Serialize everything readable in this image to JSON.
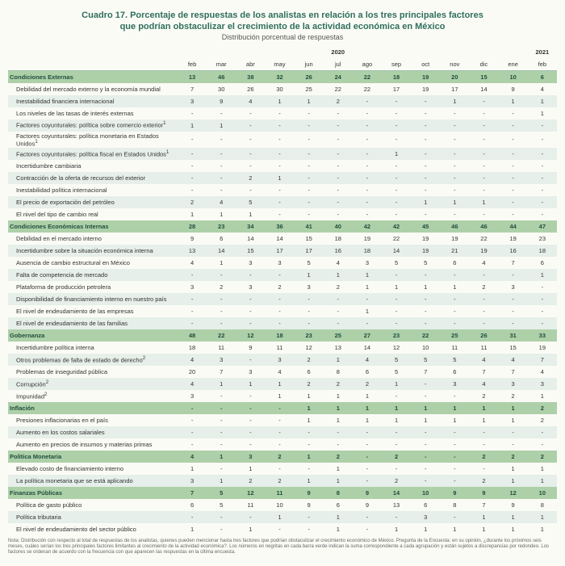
{
  "title_line1": "Cuadro 17. Porcentaje de respuestas de los analistas en relación a los tres principales factores",
  "title_line2": "que podrían obstaculizar el crecimiento de la actividad económica en México",
  "subtitle": "Distribución porcentual de respuestas",
  "years": {
    "y2020": "2020",
    "y2021": "2021"
  },
  "months": [
    "feb",
    "mar",
    "abr",
    "may",
    "jun",
    "jul",
    "ago",
    "sep",
    "oct",
    "nov",
    "dic",
    "ene",
    "feb"
  ],
  "groups": [
    {
      "label": "Condiciones Externas",
      "totals": [
        "13",
        "46",
        "38",
        "32",
        "26",
        "24",
        "22",
        "18",
        "19",
        "20",
        "15",
        "10",
        "6"
      ],
      "rows": [
        {
          "label": "Debilidad del mercado externo y la economía mundial",
          "v": [
            "7",
            "30",
            "26",
            "30",
            "25",
            "22",
            "22",
            "17",
            "19",
            "17",
            "14",
            "9",
            "4"
          ]
        },
        {
          "label": "Inestabilidad financiera internacional",
          "v": [
            "3",
            "9",
            "4",
            "1",
            "1",
            "2",
            "-",
            "-",
            "-",
            "1",
            "-",
            "1",
            "1"
          ]
        },
        {
          "label": "Los niveles de las tasas de interés externas",
          "v": [
            "-",
            "-",
            "-",
            "-",
            "-",
            "-",
            "-",
            "-",
            "-",
            "-",
            "-",
            "-",
            "1"
          ]
        },
        {
          "label": "Factores coyunturales: política sobre comercio exterior",
          "sup": "1",
          "v": [
            "1",
            "1",
            "-",
            "-",
            "-",
            "-",
            "-",
            "-",
            "-",
            "-",
            "-",
            "-",
            "-"
          ]
        },
        {
          "label": "Factores coyunturales: política monetaria en Estados Unidos",
          "sup": "1",
          "v": [
            "-",
            "-",
            "-",
            "-",
            "-",
            "-",
            "-",
            "-",
            "-",
            "-",
            "-",
            "-",
            "-"
          ]
        },
        {
          "label": "Factores coyunturales: política fiscal en Estados Unidos",
          "sup": "1",
          "v": [
            "-",
            "-",
            "-",
            "-",
            "-",
            "-",
            "-",
            "1",
            "-",
            "-",
            "-",
            "-",
            "-"
          ]
        },
        {
          "label": "Incertidumbre cambiaria",
          "v": [
            "-",
            "-",
            "-",
            "-",
            "-",
            "-",
            "-",
            "-",
            "-",
            "-",
            "-",
            "-",
            "-"
          ]
        },
        {
          "label": "Contracción de la oferta de recursos del exterior",
          "v": [
            "-",
            "-",
            "2",
            "1",
            "-",
            "-",
            "-",
            "-",
            "-",
            "-",
            "-",
            "-",
            "-"
          ]
        },
        {
          "label": "Inestabilidad política internacional",
          "v": [
            "-",
            "-",
            "-",
            "-",
            "-",
            "-",
            "-",
            "-",
            "-",
            "-",
            "-",
            "-",
            "-"
          ]
        },
        {
          "label": "El precio de exportación del petróleo",
          "v": [
            "2",
            "4",
            "5",
            "-",
            "-",
            "-",
            "-",
            "-",
            "1",
            "1",
            "1",
            "-",
            "-"
          ]
        },
        {
          "label": "El nivel del tipo de cambio real",
          "v": [
            "1",
            "1",
            "1",
            "-",
            "-",
            "-",
            "-",
            "-",
            "-",
            "-",
            "-",
            "-",
            "-"
          ]
        }
      ]
    },
    {
      "label": "Condiciones Económicas Internas",
      "totals": [
        "28",
        "23",
        "34",
        "36",
        "41",
        "40",
        "42",
        "42",
        "45",
        "46",
        "46",
        "44",
        "47"
      ],
      "rows": [
        {
          "label": "Debilidad en el mercado interno",
          "v": [
            "9",
            "6",
            "14",
            "14",
            "15",
            "18",
            "19",
            "22",
            "19",
            "19",
            "22",
            "19",
            "23"
          ]
        },
        {
          "label": "Incertidumbre sobre la situación económica interna",
          "v": [
            "13",
            "14",
            "15",
            "17",
            "17",
            "16",
            "18",
            "14",
            "19",
            "21",
            "19",
            "16",
            "18"
          ]
        },
        {
          "label": "Ausencia de cambio estructural en México",
          "v": [
            "4",
            "1",
            "3",
            "3",
            "5",
            "4",
            "3",
            "5",
            "5",
            "6",
            "4",
            "7",
            "6"
          ]
        },
        {
          "label": "Falta de competencia de mercado",
          "v": [
            "-",
            "-",
            "-",
            "-",
            "1",
            "1",
            "1",
            "-",
            "-",
            "-",
            "-",
            "-",
            "1"
          ]
        },
        {
          "label": "Plataforma de producción petrolera",
          "v": [
            "3",
            "2",
            "3",
            "2",
            "3",
            "2",
            "1",
            "1",
            "1",
            "1",
            "2",
            "3",
            "-"
          ]
        },
        {
          "label": "Disponibilidad de financiamiento interno en nuestro país",
          "v": [
            "-",
            "-",
            "-",
            "-",
            "-",
            "-",
            "-",
            "-",
            "-",
            "-",
            "-",
            "-",
            "-"
          ]
        },
        {
          "label": "El nivel de endeudamiento de las empresas",
          "v": [
            "-",
            "-",
            "-",
            "-",
            "-",
            "-",
            "1",
            "-",
            "-",
            "-",
            "-",
            "-",
            "-"
          ]
        },
        {
          "label": "El nivel de endeudamiento de las familias",
          "v": [
            "-",
            "-",
            "-",
            "-",
            "-",
            "-",
            "-",
            "-",
            "-",
            "-",
            "-",
            "-",
            "-"
          ]
        }
      ]
    },
    {
      "label": "Gobernanza",
      "totals": [
        "48",
        "22",
        "12",
        "18",
        "23",
        "25",
        "27",
        "23",
        "22",
        "25",
        "26",
        "31",
        "33"
      ],
      "rows": [
        {
          "label": "Incertidumbre política interna",
          "v": [
            "18",
            "11",
            "9",
            "11",
            "12",
            "13",
            "14",
            "12",
            "10",
            "11",
            "11",
            "15",
            "19"
          ]
        },
        {
          "label": "Otros problemas de falta de estado de derecho",
          "sup": "2",
          "v": [
            "4",
            "3",
            "-",
            "3",
            "2",
            "1",
            "4",
            "5",
            "5",
            "5",
            "4",
            "4",
            "7"
          ]
        },
        {
          "label": "Problemas de inseguridad pública",
          "v": [
            "20",
            "7",
            "3",
            "4",
            "6",
            "8",
            "6",
            "5",
            "7",
            "6",
            "7",
            "7",
            "4"
          ]
        },
        {
          "label": "Corrupción",
          "sup": "2",
          "v": [
            "4",
            "1",
            "1",
            "1",
            "2",
            "2",
            "2",
            "1",
            "-",
            "3",
            "4",
            "3",
            "3"
          ]
        },
        {
          "label": "Impunidad",
          "sup": "2",
          "v": [
            "3",
            "-",
            "-",
            "1",
            "1",
            "1",
            "1",
            "-",
            "-",
            "-",
            "2",
            "2",
            "1"
          ]
        }
      ]
    },
    {
      "label": "Inflación",
      "totals": [
        "-",
        "-",
        "-",
        "-",
        "1",
        "1",
        "1",
        "1",
        "1",
        "1",
        "1",
        "1",
        "2"
      ],
      "rows": [
        {
          "label": "Presiones inflacionarias en el país",
          "v": [
            "-",
            "-",
            "-",
            "-",
            "1",
            "1",
            "1",
            "1",
            "1",
            "1",
            "1",
            "1",
            "2"
          ]
        },
        {
          "label": "Aumento en los costos salariales",
          "v": [
            "-",
            "-",
            "-",
            "-",
            "-",
            "-",
            "-",
            "-",
            "-",
            "-",
            "-",
            "-",
            "-"
          ]
        },
        {
          "label": "Aumento en precios de insumos y materias primas",
          "v": [
            "-",
            "-",
            "-",
            "-",
            "-",
            "-",
            "-",
            "-",
            "-",
            "-",
            "-",
            "-",
            "-"
          ]
        }
      ]
    },
    {
      "label": "Política Monetaria",
      "totals": [
        "4",
        "1",
        "3",
        "2",
        "1",
        "2",
        "-",
        "2",
        "-",
        "-",
        "2",
        "2",
        "2"
      ],
      "rows": [
        {
          "label": "Elevado costo de financiamiento interno",
          "v": [
            "1",
            "-",
            "1",
            "-",
            "-",
            "1",
            "-",
            "-",
            "-",
            "-",
            "-",
            "1",
            "1"
          ]
        },
        {
          "label": "La política monetaria que se está aplicando",
          "v": [
            "3",
            "1",
            "2",
            "2",
            "1",
            "1",
            "-",
            "2",
            "-",
            "-",
            "2",
            "1",
            "1"
          ]
        }
      ]
    },
    {
      "label": "Finanzas Públicas",
      "totals": [
        "7",
        "5",
        "12",
        "11",
        "9",
        "8",
        "9",
        "14",
        "10",
        "9",
        "9",
        "12",
        "10"
      ],
      "rows": [
        {
          "label": "Política de gasto público",
          "v": [
            "6",
            "5",
            "11",
            "10",
            "9",
            "6",
            "9",
            "13",
            "6",
            "8",
            "7",
            "9",
            "8"
          ]
        },
        {
          "label": "Política tributaria",
          "v": [
            "-",
            "-",
            "-",
            "1",
            "-",
            "1",
            "-",
            "-",
            "3",
            "-",
            "1",
            "1",
            "1"
          ]
        },
        {
          "label": "El nivel de endeudamiento del sector público",
          "v": [
            "1",
            "-",
            "1",
            "-",
            "-",
            "1",
            "-",
            "1",
            "1",
            "1",
            "1",
            "1",
            "1"
          ]
        }
      ]
    }
  ],
  "footnote": "Nota: Distribución con respecto al total de respuestas de los analistas, quienes pueden mencionar hasta tres factores que podrían obstaculizar el crecimiento económico de México. Pregunta de la Encuesta: en su opinión, ¿durante los próximos seis meses, cuáles serían los tres principales factores limitantes al crecimiento de la actividad económica?. Los números en negritas en cada barra verde indican la suma correspondiente a cada agrupación y están sujetos a discrepancias por redondeo. Los factores se ordenan de acuerdo con la frecuencia con que aparecen las respuestas en la última encuesta."
}
